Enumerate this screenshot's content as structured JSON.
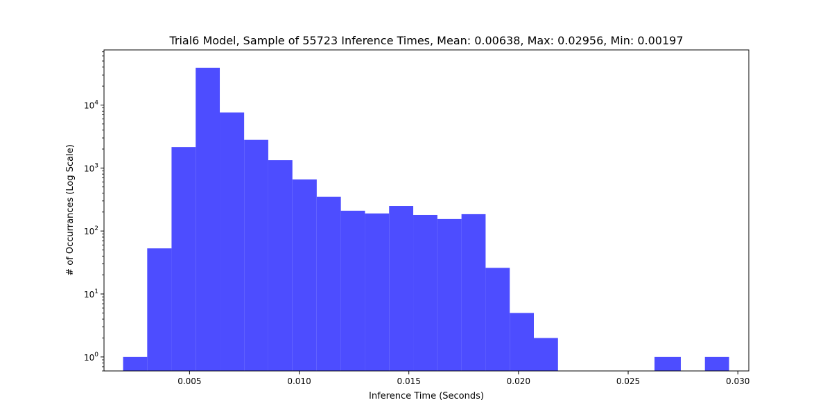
{
  "chart_data": {
    "type": "bar",
    "title": "Trial6 Model, Sample of 55723 Inference Times, Mean: 0.00638, Max: 0.02956, Min: 0.00197",
    "xlabel": "Inference Time (Seconds)",
    "ylabel": "# of Occurrances (Log Scale)",
    "yscale": "log",
    "xlim": [
      0.0011,
      0.0305
    ],
    "ylim": [
      0.6,
      75000
    ],
    "grid": false,
    "bar_color": "#4d4dff",
    "bin_edges": [
      0.00197,
      0.00307,
      0.00418,
      0.00528,
      0.00638,
      0.00749,
      0.00859,
      0.00969,
      0.0108,
      0.0119,
      0.013,
      0.0141,
      0.0152,
      0.0163,
      0.0174,
      0.0185,
      0.0196,
      0.0207,
      0.0218,
      0.0229,
      0.024,
      0.0251,
      0.0262,
      0.0274,
      0.0285,
      0.0296
    ],
    "values": [
      1,
      53,
      2150,
      39000,
      7600,
      2800,
      1330,
      660,
      350,
      210,
      190,
      250,
      180,
      155,
      185,
      26,
      5,
      2,
      0,
      0,
      0,
      0,
      1,
      0,
      1
    ],
    "x_ticks": [
      {
        "value": 0.005,
        "label": "0.005"
      },
      {
        "value": 0.01,
        "label": "0.010"
      },
      {
        "value": 0.015,
        "label": "0.015"
      },
      {
        "value": 0.02,
        "label": "0.020"
      },
      {
        "value": 0.025,
        "label": "0.025"
      },
      {
        "value": 0.03,
        "label": "0.030"
      }
    ],
    "y_ticks": [
      {
        "exp": 0,
        "base": "10",
        "sup": "0"
      },
      {
        "exp": 1,
        "base": "10",
        "sup": "1"
      },
      {
        "exp": 2,
        "base": "10",
        "sup": "2"
      },
      {
        "exp": 3,
        "base": "10",
        "sup": "3"
      },
      {
        "exp": 4,
        "base": "10",
        "sup": "4"
      }
    ]
  }
}
